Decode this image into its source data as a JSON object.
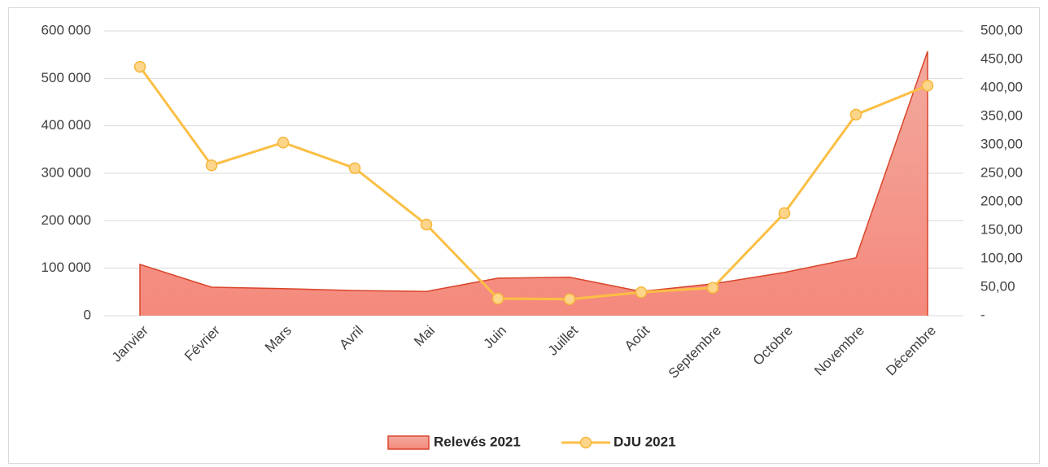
{
  "chart_data": {
    "type": "area-line",
    "categories": [
      "Janvier",
      "Février",
      "Mars",
      "Avril",
      "Mai",
      "Juin",
      "Juillet",
      "Août",
      "Septembre",
      "Octobre",
      "Novembre",
      "Décembre"
    ],
    "series": [
      {
        "name": "Relevés 2021",
        "type": "area",
        "color": "#f4897c",
        "values": [
          108000,
          60000,
          57000,
          53000,
          51000,
          79000,
          81000,
          51000,
          67000,
          91000,
          122000,
          557000
        ]
      },
      {
        "name": "DJU 2021",
        "type": "line",
        "axis": "y2",
        "color": "#fbbf45",
        "values": [
          437,
          264,
          304,
          259,
          160,
          30,
          29,
          41,
          49,
          180,
          353,
          404
        ]
      }
    ],
    "ylim": [
      0,
      600000
    ],
    "yticks": [
      0,
      {
        "value": 100000,
        "label": "100 000"
      },
      {
        "value": 200000,
        "label": "200 000"
      },
      {
        "value": 300000,
        "label": "300 000"
      },
      {
        "value": 400000,
        "label": "400 000"
      },
      {
        "value": 500000,
        "label": "500 000"
      },
      {
        "value": 600000,
        "label": "600 000"
      }
    ],
    "y2lim": [
      0,
      500
    ],
    "y2ticks": [
      {
        "value": 0,
        "label": "-"
      },
      {
        "value": 50,
        "label": "50,00"
      },
      {
        "value": 100,
        "label": "100,00"
      },
      {
        "value": 150,
        "label": "150,00"
      },
      {
        "value": 200,
        "label": "200,00"
      },
      {
        "value": 250,
        "label": "250,00"
      },
      {
        "value": 300,
        "label": "300,00"
      },
      {
        "value": 350,
        "label": "350,00"
      },
      {
        "value": 400,
        "label": "400,00"
      },
      {
        "value": 450,
        "label": "450,00"
      },
      {
        "value": 500,
        "label": "500,00"
      }
    ],
    "grid": true,
    "legend": "bottom"
  }
}
